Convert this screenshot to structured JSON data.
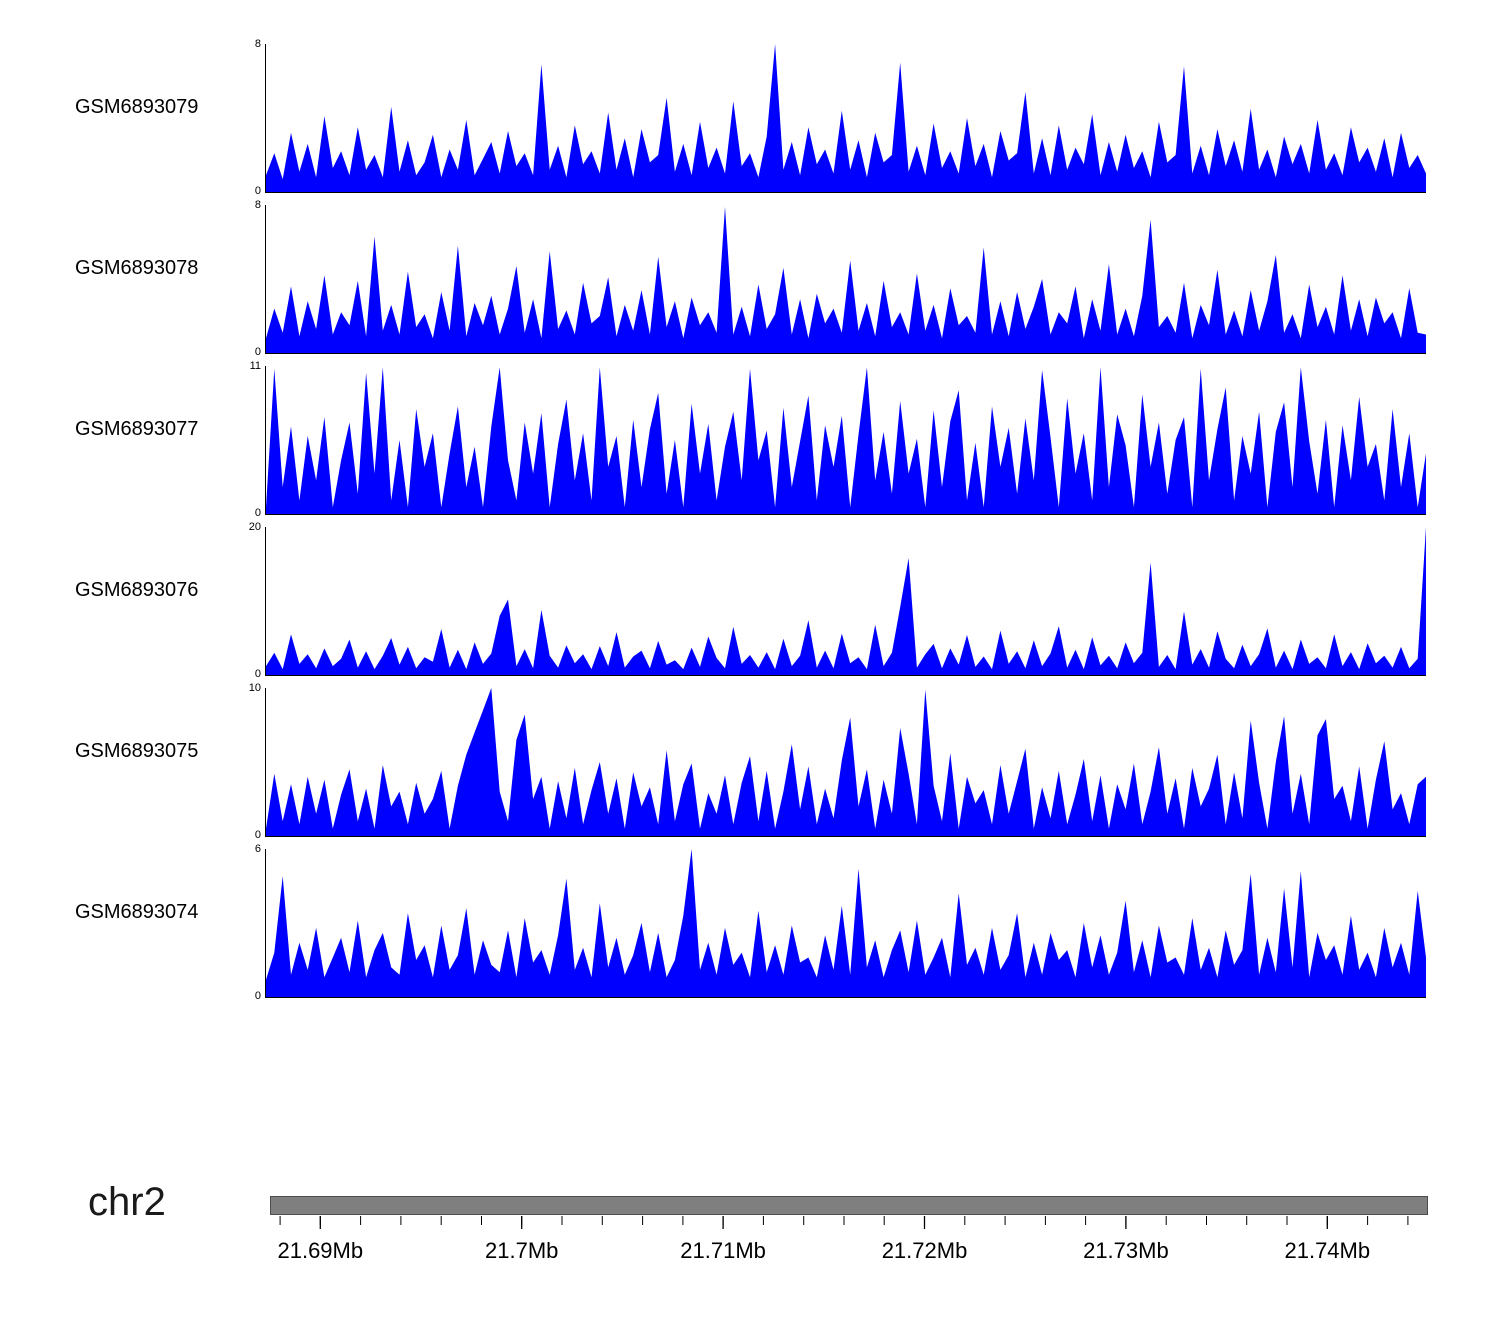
{
  "chart_data": {
    "type": "area",
    "color": "#0000ff",
    "grid": false,
    "legend": "none",
    "x_axis": {
      "chromosome": "chr2",
      "tick_labels": [
        "21.69Mb",
        "21.7Mb",
        "21.71Mb",
        "21.72Mb",
        "21.73Mb",
        "21.74Mb"
      ],
      "tick_values_mb": [
        21.69,
        21.7,
        21.71,
        21.72,
        21.73,
        21.74
      ],
      "range_mb": [
        21.6875,
        21.745
      ],
      "minor_tick_step_mb": 0.002
    },
    "tracks": [
      {
        "label": "GSM6893079",
        "ymax": 8,
        "yticks": [
          0,
          8
        ],
        "values": [
          0.9,
          2.1,
          0.7,
          3.2,
          1.1,
          2.6,
          0.8,
          4.1,
          1.3,
          2.2,
          0.9,
          3.5,
          1.2,
          2.0,
          0.8,
          4.6,
          1.1,
          2.8,
          0.9,
          1.6,
          3.1,
          0.8,
          2.3,
          1.2,
          3.9,
          0.9,
          1.8,
          2.7,
          1.0,
          3.3,
          1.4,
          2.1,
          0.9,
          6.9,
          1.2,
          2.5,
          0.8,
          3.6,
          1.5,
          2.2,
          1.0,
          4.3,
          1.2,
          2.9,
          0.8,
          3.4,
          1.6,
          2.0,
          5.1,
          1.1,
          2.6,
          0.9,
          3.8,
          1.3,
          2.4,
          1.0,
          4.9,
          1.4,
          2.1,
          0.8,
          3.0,
          8.0,
          1.2,
          2.7,
          0.9,
          3.5,
          1.5,
          2.3,
          1.0,
          4.4,
          1.2,
          2.8,
          0.8,
          3.2,
          1.6,
          2.0,
          7.0,
          1.1,
          2.5,
          0.9,
          3.7,
          1.3,
          2.2,
          1.0,
          4.0,
          1.4,
          2.6,
          0.8,
          3.3,
          1.7,
          2.1,
          5.4,
          1.0,
          2.9,
          0.9,
          3.6,
          1.2,
          2.4,
          1.5,
          4.2,
          0.9,
          2.7,
          1.1,
          3.1,
          1.3,
          2.2,
          0.8,
          3.8,
          1.6,
          2.0,
          6.8,
          1.0,
          2.5,
          0.9,
          3.4,
          1.4,
          2.8,
          1.1,
          4.5,
          1.2,
          2.3,
          0.8,
          3.0,
          1.5,
          2.6,
          1.0,
          3.9,
          1.2,
          2.1,
          0.9,
          3.5,
          1.6,
          2.4,
          1.1,
          2.9,
          0.8,
          3.2,
          1.3,
          2.0,
          1.0
        ]
      },
      {
        "label": "GSM6893078",
        "ymax": 8,
        "yticks": [
          0,
          8
        ],
        "values": [
          0.8,
          2.4,
          1.1,
          3.6,
          0.9,
          2.8,
          1.3,
          4.2,
          1.0,
          2.2,
          1.5,
          3.9,
          0.9,
          6.3,
          1.2,
          2.6,
          1.0,
          4.4,
          1.4,
          2.1,
          0.8,
          3.3,
          1.2,
          5.8,
          0.9,
          2.7,
          1.5,
          3.1,
          1.0,
          2.4,
          4.7,
          1.1,
          2.9,
          0.8,
          5.5,
          1.3,
          2.3,
          1.0,
          3.8,
          1.6,
          2.0,
          4.1,
          0.9,
          2.6,
          1.2,
          3.4,
          1.0,
          5.2,
          1.4,
          2.8,
          0.8,
          3.0,
          1.5,
          2.2,
          1.1,
          7.9,
          1.0,
          2.5,
          0.9,
          3.7,
          1.3,
          2.1,
          4.6,
          1.0,
          2.9,
          0.8,
          3.2,
          1.6,
          2.4,
          1.1,
          5.0,
          1.2,
          2.7,
          0.9,
          3.9,
          1.4,
          2.2,
          1.0,
          4.3,
          1.2,
          2.6,
          0.8,
          3.5,
          1.5,
          2.0,
          1.1,
          5.7,
          1.0,
          2.8,
          0.9,
          3.3,
          1.3,
          2.5,
          4.0,
          1.0,
          2.2,
          1.6,
          3.6,
          0.8,
          2.9,
          1.2,
          4.8,
          1.0,
          2.4,
          0.9,
          3.1,
          7.2,
          1.4,
          2.0,
          1.1,
          3.8,
          0.8,
          2.6,
          1.5,
          4.5,
          1.0,
          2.3,
          0.9,
          3.4,
          1.2,
          2.8,
          5.3,
          1.1,
          2.1,
          0.8,
          3.7,
          1.4,
          2.5,
          1.0,
          4.2,
          1.2,
          2.9,
          0.9,
          3.0,
          1.6,
          2.2,
          0.8,
          3.5,
          1.1,
          1.0
        ]
      },
      {
        "label": "GSM6893077",
        "ymax": 11,
        "yticks": [
          0,
          11
        ],
        "values": [
          0.5,
          10.8,
          2.0,
          6.5,
          1.0,
          5.8,
          2.5,
          7.2,
          0.5,
          4.0,
          6.8,
          1.5,
          10.5,
          3.0,
          10.9,
          1.0,
          5.5,
          0.5,
          7.8,
          3.5,
          6.0,
          0.5,
          4.5,
          8.0,
          2.0,
          5.0,
          0.5,
          6.5,
          10.9,
          4.0,
          1.0,
          6.8,
          3.0,
          7.5,
          0.5,
          5.2,
          8.5,
          2.5,
          6.0,
          1.0,
          10.9,
          3.5,
          5.8,
          0.5,
          7.0,
          2.0,
          6.3,
          9.0,
          1.5,
          5.5,
          0.5,
          8.2,
          3.0,
          6.7,
          1.0,
          5.0,
          7.6,
          2.5,
          10.8,
          4.0,
          6.2,
          0.5,
          7.9,
          2.0,
          5.4,
          8.8,
          1.0,
          6.6,
          3.5,
          7.3,
          0.5,
          5.9,
          10.9,
          2.5,
          6.1,
          1.5,
          8.4,
          3.0,
          5.6,
          0.5,
          7.7,
          2.0,
          6.9,
          9.2,
          1.0,
          5.3,
          0.5,
          8.0,
          3.5,
          6.4,
          1.5,
          7.1,
          2.5,
          10.7,
          5.7,
          0.5,
          8.6,
          3.0,
          6.0,
          1.0,
          10.9,
          2.0,
          7.4,
          5.1,
          0.5,
          8.9,
          3.5,
          6.8,
          1.5,
          5.5,
          7.2,
          0.5,
          10.8,
          2.5,
          6.3,
          9.4,
          1.0,
          5.8,
          3.0,
          7.6,
          0.5,
          6.1,
          8.3,
          2.0,
          10.9,
          5.4,
          1.5,
          7.0,
          0.5,
          6.6,
          2.5,
          8.7,
          3.5,
          5.2,
          1.0,
          7.8,
          2.0,
          6.0,
          0.5,
          4.5
        ]
      },
      {
        "label": "GSM6893076",
        "ymax": 20,
        "yticks": [
          0,
          20
        ],
        "values": [
          1.2,
          3.0,
          0.8,
          5.5,
          1.5,
          2.8,
          0.9,
          3.6,
          1.2,
          2.2,
          4.8,
          1.0,
          3.2,
          0.8,
          2.6,
          5.0,
          1.4,
          3.8,
          0.9,
          2.4,
          1.8,
          6.2,
          1.0,
          3.4,
          0.8,
          4.4,
          1.5,
          2.9,
          8.0,
          10.2,
          1.2,
          3.5,
          0.9,
          8.8,
          2.6,
          1.0,
          4.0,
          1.6,
          2.8,
          0.8,
          3.9,
          1.2,
          5.8,
          1.0,
          2.5,
          3.3,
          0.9,
          4.6,
          1.4,
          2.0,
          0.8,
          3.7,
          1.1,
          5.2,
          2.3,
          0.9,
          6.5,
          1.5,
          2.7,
          1.0,
          3.1,
          0.8,
          4.9,
          1.2,
          2.6,
          7.4,
          1.0,
          3.3,
          0.9,
          5.6,
          1.6,
          2.4,
          0.8,
          6.8,
          1.2,
          3.0,
          9.2,
          15.8,
          1.0,
          2.8,
          4.2,
          0.9,
          3.6,
          1.4,
          5.4,
          1.1,
          2.5,
          0.8,
          6.0,
          1.5,
          3.2,
          0.9,
          4.7,
          1.2,
          2.9,
          6.6,
          1.0,
          3.4,
          0.8,
          5.1,
          1.3,
          2.6,
          0.9,
          4.4,
          1.6,
          3.0,
          15.2,
          1.1,
          2.7,
          0.8,
          8.6,
          1.4,
          3.5,
          1.0,
          5.9,
          2.2,
          0.9,
          4.1,
          1.2,
          2.8,
          6.3,
          1.0,
          3.3,
          0.8,
          4.8,
          1.5,
          2.4,
          0.9,
          5.5,
          1.2,
          3.1,
          0.8,
          4.3,
          1.6,
          2.6,
          1.0,
          3.8,
          0.9,
          2.2,
          20.0
        ]
      },
      {
        "label": "GSM6893075",
        "ymax": 10,
        "yticks": [
          0,
          10
        ],
        "values": [
          0.5,
          4.2,
          1.0,
          3.5,
          0.8,
          4.0,
          1.5,
          3.8,
          0.5,
          2.8,
          4.5,
          1.0,
          3.2,
          0.5,
          4.8,
          2.0,
          3.0,
          0.8,
          3.6,
          1.5,
          2.5,
          4.4,
          0.5,
          3.4,
          5.5,
          7.0,
          8.5,
          10.0,
          3.0,
          1.0,
          6.5,
          8.2,
          2.5,
          4.0,
          0.5,
          3.7,
          1.2,
          4.6,
          0.8,
          3.1,
          5.0,
          1.5,
          3.9,
          0.5,
          4.3,
          2.0,
          3.3,
          0.8,
          5.8,
          1.0,
          3.5,
          4.9,
          0.5,
          2.9,
          1.5,
          4.1,
          0.8,
          3.6,
          5.4,
          1.0,
          4.4,
          0.5,
          3.0,
          6.2,
          1.8,
          4.7,
          0.8,
          3.2,
          1.2,
          5.1,
          8.0,
          2.0,
          4.5,
          0.5,
          3.8,
          1.5,
          7.3,
          4.2,
          0.8,
          9.9,
          3.4,
          1.0,
          5.6,
          0.5,
          4.0,
          2.2,
          3.1,
          0.8,
          4.8,
          1.5,
          3.7,
          5.9,
          0.5,
          3.3,
          1.2,
          4.4,
          0.8,
          2.8,
          5.2,
          1.0,
          4.1,
          0.5,
          3.5,
          1.8,
          4.9,
          0.8,
          3.0,
          6.0,
          1.5,
          3.9,
          0.5,
          4.6,
          2.0,
          3.2,
          5.5,
          0.8,
          4.3,
          1.2,
          7.8,
          3.6,
          0.5,
          5.0,
          8.1,
          1.5,
          4.2,
          0.8,
          6.8,
          7.9,
          2.5,
          3.4,
          1.0,
          4.7,
          0.5,
          3.8,
          6.4,
          1.8,
          2.9,
          0.8,
          3.5,
          4.0
        ]
      },
      {
        "label": "GSM6893074",
        "ymax": 6,
        "yticks": [
          0,
          6
        ],
        "values": [
          0.7,
          1.8,
          4.9,
          0.9,
          2.2,
          1.1,
          2.8,
          0.8,
          1.6,
          2.4,
          1.0,
          3.1,
          0.8,
          1.9,
          2.6,
          1.2,
          0.9,
          3.4,
          1.5,
          2.1,
          0.8,
          2.9,
          1.1,
          1.7,
          3.6,
          0.9,
          2.3,
          1.3,
          1.0,
          2.7,
          0.8,
          3.2,
          1.4,
          1.9,
          0.9,
          2.5,
          4.8,
          1.1,
          2.0,
          0.8,
          3.8,
          1.2,
          2.4,
          0.9,
          1.7,
          3.0,
          1.0,
          2.6,
          0.8,
          1.5,
          3.3,
          6.0,
          1.1,
          2.2,
          0.9,
          2.8,
          1.3,
          1.8,
          0.8,
          3.5,
          1.0,
          2.1,
          0.9,
          2.9,
          1.4,
          1.6,
          0.8,
          2.5,
          1.1,
          3.7,
          0.9,
          5.2,
          1.2,
          2.3,
          0.8,
          1.9,
          2.7,
          1.0,
          3.1,
          0.9,
          1.6,
          2.4,
          0.8,
          4.2,
          1.3,
          2.0,
          0.9,
          2.8,
          1.1,
          1.7,
          3.4,
          0.8,
          2.2,
          0.9,
          2.6,
          1.5,
          1.9,
          0.8,
          3.0,
          1.2,
          2.5,
          0.9,
          1.8,
          3.9,
          1.0,
          2.3,
          0.8,
          2.9,
          1.4,
          1.6,
          0.9,
          3.2,
          1.1,
          2.0,
          0.8,
          2.7,
          1.3,
          1.9,
          5.0,
          0.9,
          2.4,
          1.0,
          4.4,
          1.2,
          5.1,
          0.8,
          2.6,
          1.5,
          2.1,
          0.9,
          3.3,
          1.1,
          1.8,
          0.8,
          2.8,
          1.2,
          2.2,
          0.9,
          4.3,
          1.6
        ]
      }
    ]
  }
}
